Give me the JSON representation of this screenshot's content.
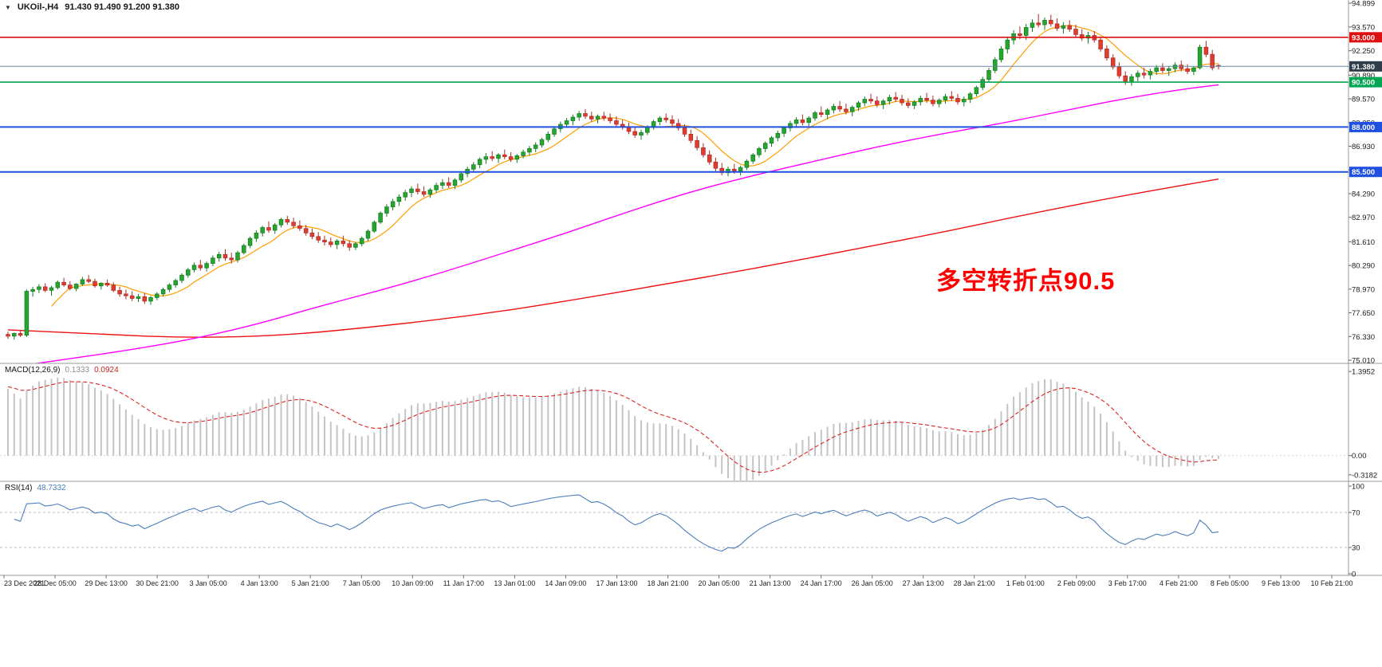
{
  "header": {
    "symbol": "UKOil-,H4",
    "ohlc_values": "91.430 91.490 91.200 91.380"
  },
  "annotation": {
    "text": "多空转折点90.5",
    "color": "#ff0000"
  },
  "indicators": {
    "macd": {
      "name": "MACD(12,26,9)",
      "values": [
        "0.1333",
        "0.0924"
      ]
    },
    "rsi": {
      "name": "RSI(14)",
      "value": "48.7332"
    }
  },
  "chart_data": {
    "type": "candlestick",
    "title": "UKOil- H4",
    "ylim": [
      75.01,
      94.899
    ],
    "yticks": [
      "94.899",
      "93.570",
      "92.250",
      "90.890",
      "89.570",
      "88.250",
      "86.930",
      "85.610",
      "84.290",
      "82.970",
      "81.610",
      "80.290",
      "78.970",
      "77.650",
      "76.330",
      "75.010"
    ],
    "xticklabels": [
      "23 Dec 2021",
      "28 Dec 05:00",
      "29 Dec 13:00",
      "30 Dec 21:00",
      "3 Jan 05:00",
      "4 Jan 13:00",
      "5 Jan 21:00",
      "7 Jan 05:00",
      "10 Jan 09:00",
      "11 Jan 17:00",
      "13 Jan 01:00",
      "14 Jan 09:00",
      "17 Jan 13:00",
      "18 Jan 21:00",
      "20 Jan 05:00",
      "21 Jan 13:00",
      "24 Jan 17:00",
      "26 Jan 05:00",
      "27 Jan 13:00",
      "28 Jan 21:00",
      "1 Feb 01:00",
      "2 Feb 09:00",
      "3 Feb 17:00",
      "4 Feb 21:00",
      "8 Feb 05:00",
      "9 Feb 13:00",
      "10 Feb 21:00"
    ],
    "colors": {
      "up": "#26a52f",
      "up_stroke": "#157a22",
      "down": "#e23b30",
      "down_stroke": "#ac2a21",
      "ma_fast": "#ff9d00",
      "ma_mid": "#ff00ff",
      "ma_slow": "#ee1111",
      "macd_hist": "#c4c4c4",
      "macd_signal": "#dd2222",
      "rsi": "#4a7ebb"
    },
    "hlines": [
      {
        "value": 93.0,
        "label": "93.000",
        "color": "#dd1111",
        "width": 1.6
      },
      {
        "value": 90.5,
        "label": "90.500",
        "color": "#00a651",
        "width": 1.6
      },
      {
        "value": 88.0,
        "label": "88.000",
        "color": "#2050e0",
        "width": 2
      },
      {
        "value": 85.5,
        "label": "85.500",
        "color": "#2050e0",
        "width": 2
      }
    ],
    "current_price_line": {
      "value": 91.38,
      "label": "91.380",
      "line_color": "#6a8aa0",
      "box_color": "#2f3d4a"
    },
    "moving_averages": {
      "fast": {
        "type": "sma",
        "period": 8
      },
      "mid": {
        "points": [
          [
            0,
            74.6
          ],
          [
            10,
            75.1
          ],
          [
            20,
            75.6
          ],
          [
            30,
            76.2
          ],
          [
            40,
            77.0
          ],
          [
            50,
            78.0
          ],
          [
            60,
            78.9
          ],
          [
            70,
            79.9
          ],
          [
            80,
            81.0
          ],
          [
            90,
            82.1
          ],
          [
            100,
            83.3
          ],
          [
            110,
            84.4
          ],
          [
            120,
            85.3
          ],
          [
            130,
            86.1
          ],
          [
            140,
            86.9
          ],
          [
            150,
            87.6
          ],
          [
            160,
            88.2
          ],
          [
            170,
            88.9
          ],
          [
            180,
            89.6
          ],
          [
            190,
            90.15
          ],
          [
            195,
            90.35
          ]
        ]
      },
      "slow": {
        "points": [
          [
            0,
            76.7
          ],
          [
            15,
            76.45
          ],
          [
            30,
            76.25
          ],
          [
            45,
            76.4
          ],
          [
            60,
            76.9
          ],
          [
            75,
            77.5
          ],
          [
            90,
            78.3
          ],
          [
            105,
            79.2
          ],
          [
            120,
            80.1
          ],
          [
            135,
            81.1
          ],
          [
            150,
            82.1
          ],
          [
            165,
            83.2
          ],
          [
            180,
            84.2
          ],
          [
            195,
            85.1
          ]
        ]
      }
    },
    "macd": {
      "fast": 12,
      "slow": 26,
      "signal_period": 9,
      "seed": {
        "ema_fast": 76.45,
        "ema_slow": 75.25,
        "signal": 1.15
      },
      "ylim": [
        -0.4,
        1.45
      ],
      "yticks": [
        {
          "v": 1.3952,
          "label": "1.3952"
        },
        {
          "v": 0,
          "label": "0.00"
        },
        {
          "v": -0.3182,
          "label": "-0.3182"
        }
      ]
    },
    "rsi": {
      "period": 14,
      "levels": [
        70,
        30
      ],
      "seed": {
        "gain": 0.12,
        "loss": 0.08
      },
      "yticks": [
        {
          "v": 100,
          "label": "100"
        },
        {
          "v": 70,
          "label": "70"
        },
        {
          "v": 30,
          "label": "30"
        },
        {
          "v": 0,
          "label": "0"
        }
      ]
    },
    "ohlc": [
      [
        76.45,
        76.6,
        76.2,
        76.35
      ],
      [
        76.35,
        76.55,
        76.15,
        76.5
      ],
      [
        76.5,
        76.7,
        76.3,
        76.4
      ],
      [
        76.4,
        78.95,
        76.3,
        78.85
      ],
      [
        78.85,
        79.1,
        78.55,
        78.95
      ],
      [
        78.95,
        79.25,
        78.75,
        79.1
      ],
      [
        79.1,
        79.3,
        78.8,
        78.9
      ],
      [
        78.9,
        79.15,
        78.6,
        79.05
      ],
      [
        79.05,
        79.45,
        78.95,
        79.35
      ],
      [
        79.35,
        79.6,
        79.1,
        79.2
      ],
      [
        79.2,
        79.4,
        78.9,
        79.0
      ],
      [
        79.0,
        79.3,
        78.85,
        79.25
      ],
      [
        79.25,
        79.65,
        79.15,
        79.5
      ],
      [
        79.5,
        79.75,
        79.3,
        79.4
      ],
      [
        79.4,
        79.55,
        79.05,
        79.15
      ],
      [
        79.15,
        79.35,
        78.95,
        79.3
      ],
      [
        79.3,
        79.5,
        79.1,
        79.2
      ],
      [
        79.2,
        79.35,
        78.8,
        78.9
      ],
      [
        78.9,
        79.1,
        78.55,
        78.7
      ],
      [
        78.7,
        78.95,
        78.4,
        78.6
      ],
      [
        78.6,
        78.85,
        78.3,
        78.45
      ],
      [
        78.45,
        78.7,
        78.25,
        78.55
      ],
      [
        78.55,
        78.75,
        78.15,
        78.3
      ],
      [
        78.3,
        78.6,
        78.1,
        78.5
      ],
      [
        78.5,
        78.8,
        78.35,
        78.7
      ],
      [
        78.7,
        79.05,
        78.55,
        78.95
      ],
      [
        78.95,
        79.3,
        78.8,
        79.2
      ],
      [
        79.2,
        79.55,
        79.05,
        79.45
      ],
      [
        79.45,
        79.85,
        79.3,
        79.75
      ],
      [
        79.75,
        80.15,
        79.6,
        80.05
      ],
      [
        80.05,
        80.45,
        79.9,
        80.3
      ],
      [
        80.3,
        80.6,
        80.0,
        80.15
      ],
      [
        80.15,
        80.5,
        79.95,
        80.4
      ],
      [
        80.4,
        80.85,
        80.25,
        80.7
      ],
      [
        80.7,
        81.05,
        80.5,
        80.9
      ],
      [
        80.9,
        81.2,
        80.55,
        80.7
      ],
      [
        80.7,
        81.0,
        80.4,
        80.6
      ],
      [
        80.6,
        81.1,
        80.45,
        81.0
      ],
      [
        81.0,
        81.5,
        80.9,
        81.4
      ],
      [
        81.4,
        81.9,
        81.25,
        81.8
      ],
      [
        81.8,
        82.25,
        81.6,
        82.1
      ],
      [
        82.1,
        82.5,
        81.9,
        82.4
      ],
      [
        82.4,
        82.75,
        82.1,
        82.25
      ],
      [
        82.25,
        82.65,
        82.05,
        82.55
      ],
      [
        82.55,
        82.95,
        82.4,
        82.85
      ],
      [
        82.85,
        83.05,
        82.55,
        82.7
      ],
      [
        82.7,
        82.95,
        82.35,
        82.5
      ],
      [
        82.5,
        82.8,
        82.2,
        82.35
      ],
      [
        82.35,
        82.55,
        81.95,
        82.1
      ],
      [
        82.1,
        82.35,
        81.75,
        81.9
      ],
      [
        81.9,
        82.15,
        81.55,
        81.7
      ],
      [
        81.7,
        81.95,
        81.4,
        81.6
      ],
      [
        81.6,
        81.85,
        81.3,
        81.45
      ],
      [
        81.45,
        81.75,
        81.2,
        81.65
      ],
      [
        81.65,
        81.95,
        81.35,
        81.5
      ],
      [
        81.5,
        81.7,
        81.1,
        81.3
      ],
      [
        81.3,
        81.6,
        81.15,
        81.5
      ],
      [
        81.5,
        81.9,
        81.35,
        81.8
      ],
      [
        81.8,
        82.3,
        81.65,
        82.2
      ],
      [
        82.2,
        82.8,
        82.1,
        82.7
      ],
      [
        82.7,
        83.3,
        82.6,
        83.2
      ],
      [
        83.2,
        83.7,
        83.0,
        83.55
      ],
      [
        83.55,
        84.0,
        83.35,
        83.85
      ],
      [
        83.85,
        84.25,
        83.6,
        84.1
      ],
      [
        84.1,
        84.5,
        83.9,
        84.35
      ],
      [
        84.35,
        84.7,
        84.1,
        84.55
      ],
      [
        84.55,
        84.85,
        84.25,
        84.4
      ],
      [
        84.4,
        84.7,
        84.1,
        84.25
      ],
      [
        84.25,
        84.6,
        84.05,
        84.5
      ],
      [
        84.5,
        84.9,
        84.35,
        84.75
      ],
      [
        84.75,
        85.1,
        84.55,
        84.9
      ],
      [
        84.9,
        85.2,
        84.6,
        84.75
      ],
      [
        84.75,
        85.15,
        84.55,
        85.05
      ],
      [
        85.05,
        85.5,
        84.9,
        85.4
      ],
      [
        85.4,
        85.8,
        85.2,
        85.65
      ],
      [
        85.65,
        86.05,
        85.45,
        85.9
      ],
      [
        85.9,
        86.3,
        85.7,
        86.2
      ],
      [
        86.2,
        86.55,
        85.95,
        86.35
      ],
      [
        86.35,
        86.65,
        86.1,
        86.25
      ],
      [
        86.25,
        86.55,
        86.0,
        86.45
      ],
      [
        86.45,
        86.75,
        86.2,
        86.35
      ],
      [
        86.35,
        86.6,
        86.05,
        86.2
      ],
      [
        86.2,
        86.5,
        86.0,
        86.4
      ],
      [
        86.4,
        86.75,
        86.25,
        86.6
      ],
      [
        86.6,
        86.95,
        86.4,
        86.8
      ],
      [
        86.8,
        87.15,
        86.6,
        87.0
      ],
      [
        87.0,
        87.4,
        86.85,
        87.3
      ],
      [
        87.3,
        87.75,
        87.15,
        87.6
      ],
      [
        87.6,
        88.05,
        87.45,
        87.9
      ],
      [
        87.9,
        88.3,
        87.7,
        88.15
      ],
      [
        88.15,
        88.5,
        87.95,
        88.35
      ],
      [
        88.35,
        88.7,
        88.1,
        88.55
      ],
      [
        88.55,
        88.9,
        88.35,
        88.75
      ],
      [
        88.75,
        89.0,
        88.45,
        88.6
      ],
      [
        88.6,
        88.85,
        88.3,
        88.45
      ],
      [
        88.45,
        88.7,
        88.2,
        88.6
      ],
      [
        88.6,
        88.85,
        88.35,
        88.5
      ],
      [
        88.5,
        88.75,
        88.2,
        88.35
      ],
      [
        88.35,
        88.6,
        88.0,
        88.15
      ],
      [
        88.15,
        88.4,
        87.85,
        88.0
      ],
      [
        88.0,
        88.25,
        87.6,
        87.75
      ],
      [
        87.75,
        88.0,
        87.4,
        87.55
      ],
      [
        87.55,
        87.85,
        87.3,
        87.7
      ],
      [
        87.7,
        88.1,
        87.55,
        88.0
      ],
      [
        88.0,
        88.4,
        87.85,
        88.3
      ],
      [
        88.3,
        88.6,
        88.1,
        88.5
      ],
      [
        88.5,
        88.75,
        88.25,
        88.4
      ],
      [
        88.4,
        88.65,
        88.05,
        88.2
      ],
      [
        88.2,
        88.45,
        87.8,
        87.95
      ],
      [
        87.95,
        88.15,
        87.45,
        87.6
      ],
      [
        87.6,
        87.85,
        87.1,
        87.25
      ],
      [
        87.25,
        87.5,
        86.7,
        86.85
      ],
      [
        86.85,
        87.1,
        86.3,
        86.45
      ],
      [
        86.45,
        86.7,
        85.9,
        86.05
      ],
      [
        86.05,
        86.3,
        85.55,
        85.7
      ],
      [
        85.7,
        86.0,
        85.3,
        85.45
      ],
      [
        85.45,
        85.8,
        85.25,
        85.65
      ],
      [
        85.65,
        85.95,
        85.4,
        85.55
      ],
      [
        85.55,
        85.85,
        85.3,
        85.75
      ],
      [
        85.75,
        86.2,
        85.6,
        86.1
      ],
      [
        86.1,
        86.55,
        85.95,
        86.45
      ],
      [
        86.45,
        86.9,
        86.3,
        86.8
      ],
      [
        86.8,
        87.2,
        86.6,
        87.1
      ],
      [
        87.1,
        87.5,
        86.9,
        87.4
      ],
      [
        87.4,
        87.8,
        87.2,
        87.65
      ],
      [
        87.65,
        88.05,
        87.45,
        87.95
      ],
      [
        87.95,
        88.35,
        87.75,
        88.2
      ],
      [
        88.2,
        88.55,
        87.95,
        88.4
      ],
      [
        88.4,
        88.7,
        88.1,
        88.25
      ],
      [
        88.25,
        88.6,
        88.05,
        88.5
      ],
      [
        88.5,
        88.9,
        88.35,
        88.8
      ],
      [
        88.8,
        89.15,
        88.55,
        88.7
      ],
      [
        88.7,
        89.05,
        88.45,
        88.95
      ],
      [
        88.95,
        89.3,
        88.75,
        89.15
      ],
      [
        89.15,
        89.45,
        88.85,
        89.0
      ],
      [
        89.0,
        89.3,
        88.7,
        88.85
      ],
      [
        88.85,
        89.2,
        88.6,
        89.1
      ],
      [
        89.1,
        89.45,
        88.9,
        89.35
      ],
      [
        89.35,
        89.7,
        89.15,
        89.55
      ],
      [
        89.55,
        89.85,
        89.3,
        89.45
      ],
      [
        89.45,
        89.7,
        89.1,
        89.25
      ],
      [
        89.25,
        89.55,
        89.0,
        89.45
      ],
      [
        89.45,
        89.8,
        89.25,
        89.65
      ],
      [
        89.65,
        89.95,
        89.4,
        89.55
      ],
      [
        89.55,
        89.8,
        89.2,
        89.35
      ],
      [
        89.35,
        89.6,
        89.05,
        89.2
      ],
      [
        89.2,
        89.5,
        89.0,
        89.4
      ],
      [
        89.4,
        89.75,
        89.2,
        89.6
      ],
      [
        89.6,
        89.9,
        89.35,
        89.5
      ],
      [
        89.5,
        89.75,
        89.15,
        89.3
      ],
      [
        89.3,
        89.6,
        89.1,
        89.5
      ],
      [
        89.5,
        89.85,
        89.3,
        89.7
      ],
      [
        89.7,
        90.0,
        89.45,
        89.6
      ],
      [
        89.6,
        89.85,
        89.25,
        89.4
      ],
      [
        89.4,
        89.7,
        89.15,
        89.55
      ],
      [
        89.55,
        89.95,
        89.35,
        89.85
      ],
      [
        89.85,
        90.3,
        89.7,
        90.2
      ],
      [
        90.2,
        90.8,
        90.05,
        90.65
      ],
      [
        90.65,
        91.3,
        90.5,
        91.15
      ],
      [
        91.15,
        91.9,
        91.0,
        91.75
      ],
      [
        91.75,
        92.5,
        91.6,
        92.35
      ],
      [
        92.35,
        93.0,
        92.1,
        92.85
      ],
      [
        92.85,
        93.4,
        92.6,
        93.2
      ],
      [
        93.2,
        93.6,
        92.9,
        93.1
      ],
      [
        93.1,
        93.75,
        92.85,
        93.55
      ],
      [
        93.55,
        94.0,
        93.3,
        93.8
      ],
      [
        93.8,
        94.3,
        93.55,
        93.7
      ],
      [
        93.7,
        94.1,
        93.4,
        93.95
      ],
      [
        93.95,
        94.25,
        93.6,
        93.75
      ],
      [
        93.75,
        94.05,
        93.35,
        93.5
      ],
      [
        93.5,
        93.85,
        93.2,
        93.65
      ],
      [
        93.65,
        93.95,
        93.3,
        93.45
      ],
      [
        93.45,
        93.7,
        93.0,
        93.15
      ],
      [
        93.15,
        93.45,
        92.8,
        92.95
      ],
      [
        92.95,
        93.3,
        92.65,
        93.1
      ],
      [
        93.1,
        93.35,
        92.7,
        92.85
      ],
      [
        92.85,
        93.0,
        92.2,
        92.35
      ],
      [
        92.35,
        92.55,
        91.7,
        91.85
      ],
      [
        91.85,
        92.05,
        91.2,
        91.35
      ],
      [
        91.35,
        91.6,
        90.7,
        90.85
      ],
      [
        90.85,
        91.1,
        90.35,
        90.55
      ],
      [
        90.55,
        90.95,
        90.3,
        90.8
      ],
      [
        90.8,
        91.15,
        90.55,
        91.0
      ],
      [
        91.0,
        91.3,
        90.7,
        90.9
      ],
      [
        90.9,
        91.25,
        90.65,
        91.1
      ],
      [
        91.1,
        91.45,
        90.9,
        91.3
      ],
      [
        91.3,
        91.55,
        91.0,
        91.15
      ],
      [
        91.15,
        91.4,
        90.85,
        91.25
      ],
      [
        91.25,
        91.6,
        91.05,
        91.45
      ],
      [
        91.45,
        91.7,
        91.1,
        91.25
      ],
      [
        91.25,
        91.5,
        90.95,
        91.1
      ],
      [
        91.1,
        91.4,
        90.9,
        91.3
      ],
      [
        91.3,
        92.6,
        91.2,
        92.45
      ],
      [
        92.45,
        92.8,
        91.9,
        92.05
      ],
      [
        92.05,
        92.3,
        91.15,
        91.3
      ],
      [
        91.43,
        91.49,
        91.2,
        91.38
      ]
    ]
  }
}
